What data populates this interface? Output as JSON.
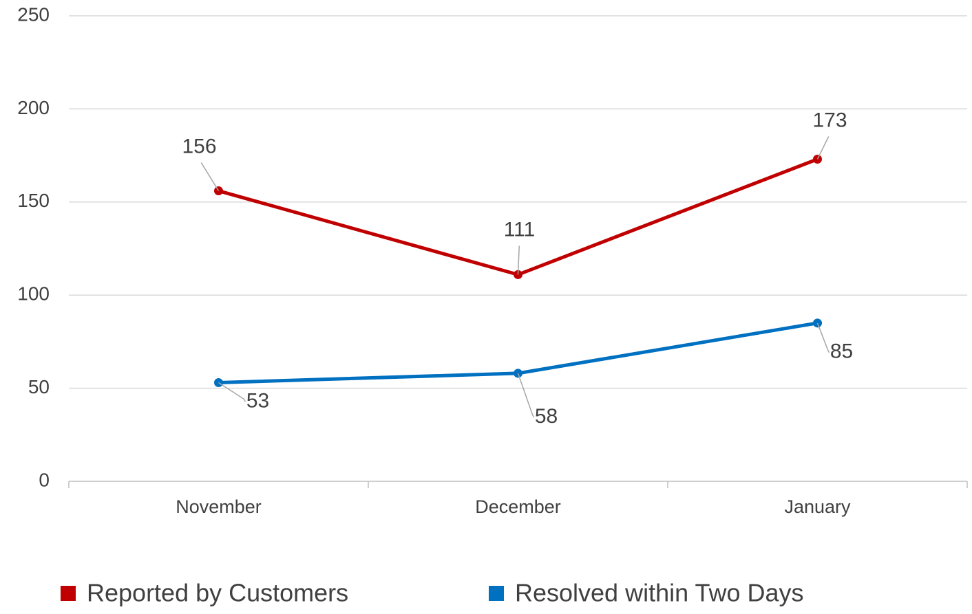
{
  "chart_data": {
    "type": "line",
    "categories": [
      "November",
      "December",
      "January"
    ],
    "series": [
      {
        "name": "Reported by Customers",
        "color": "#c00000",
        "values": [
          156,
          111,
          173
        ]
      },
      {
        "name": "Resolved within Two Days",
        "color": "#0070c0",
        "values": [
          53,
          58,
          85
        ]
      }
    ],
    "ylim": [
      0,
      250
    ],
    "yticks": [
      0,
      50,
      100,
      150,
      200,
      250
    ],
    "grid": true,
    "legend": "bottom",
    "data_labels": true
  }
}
